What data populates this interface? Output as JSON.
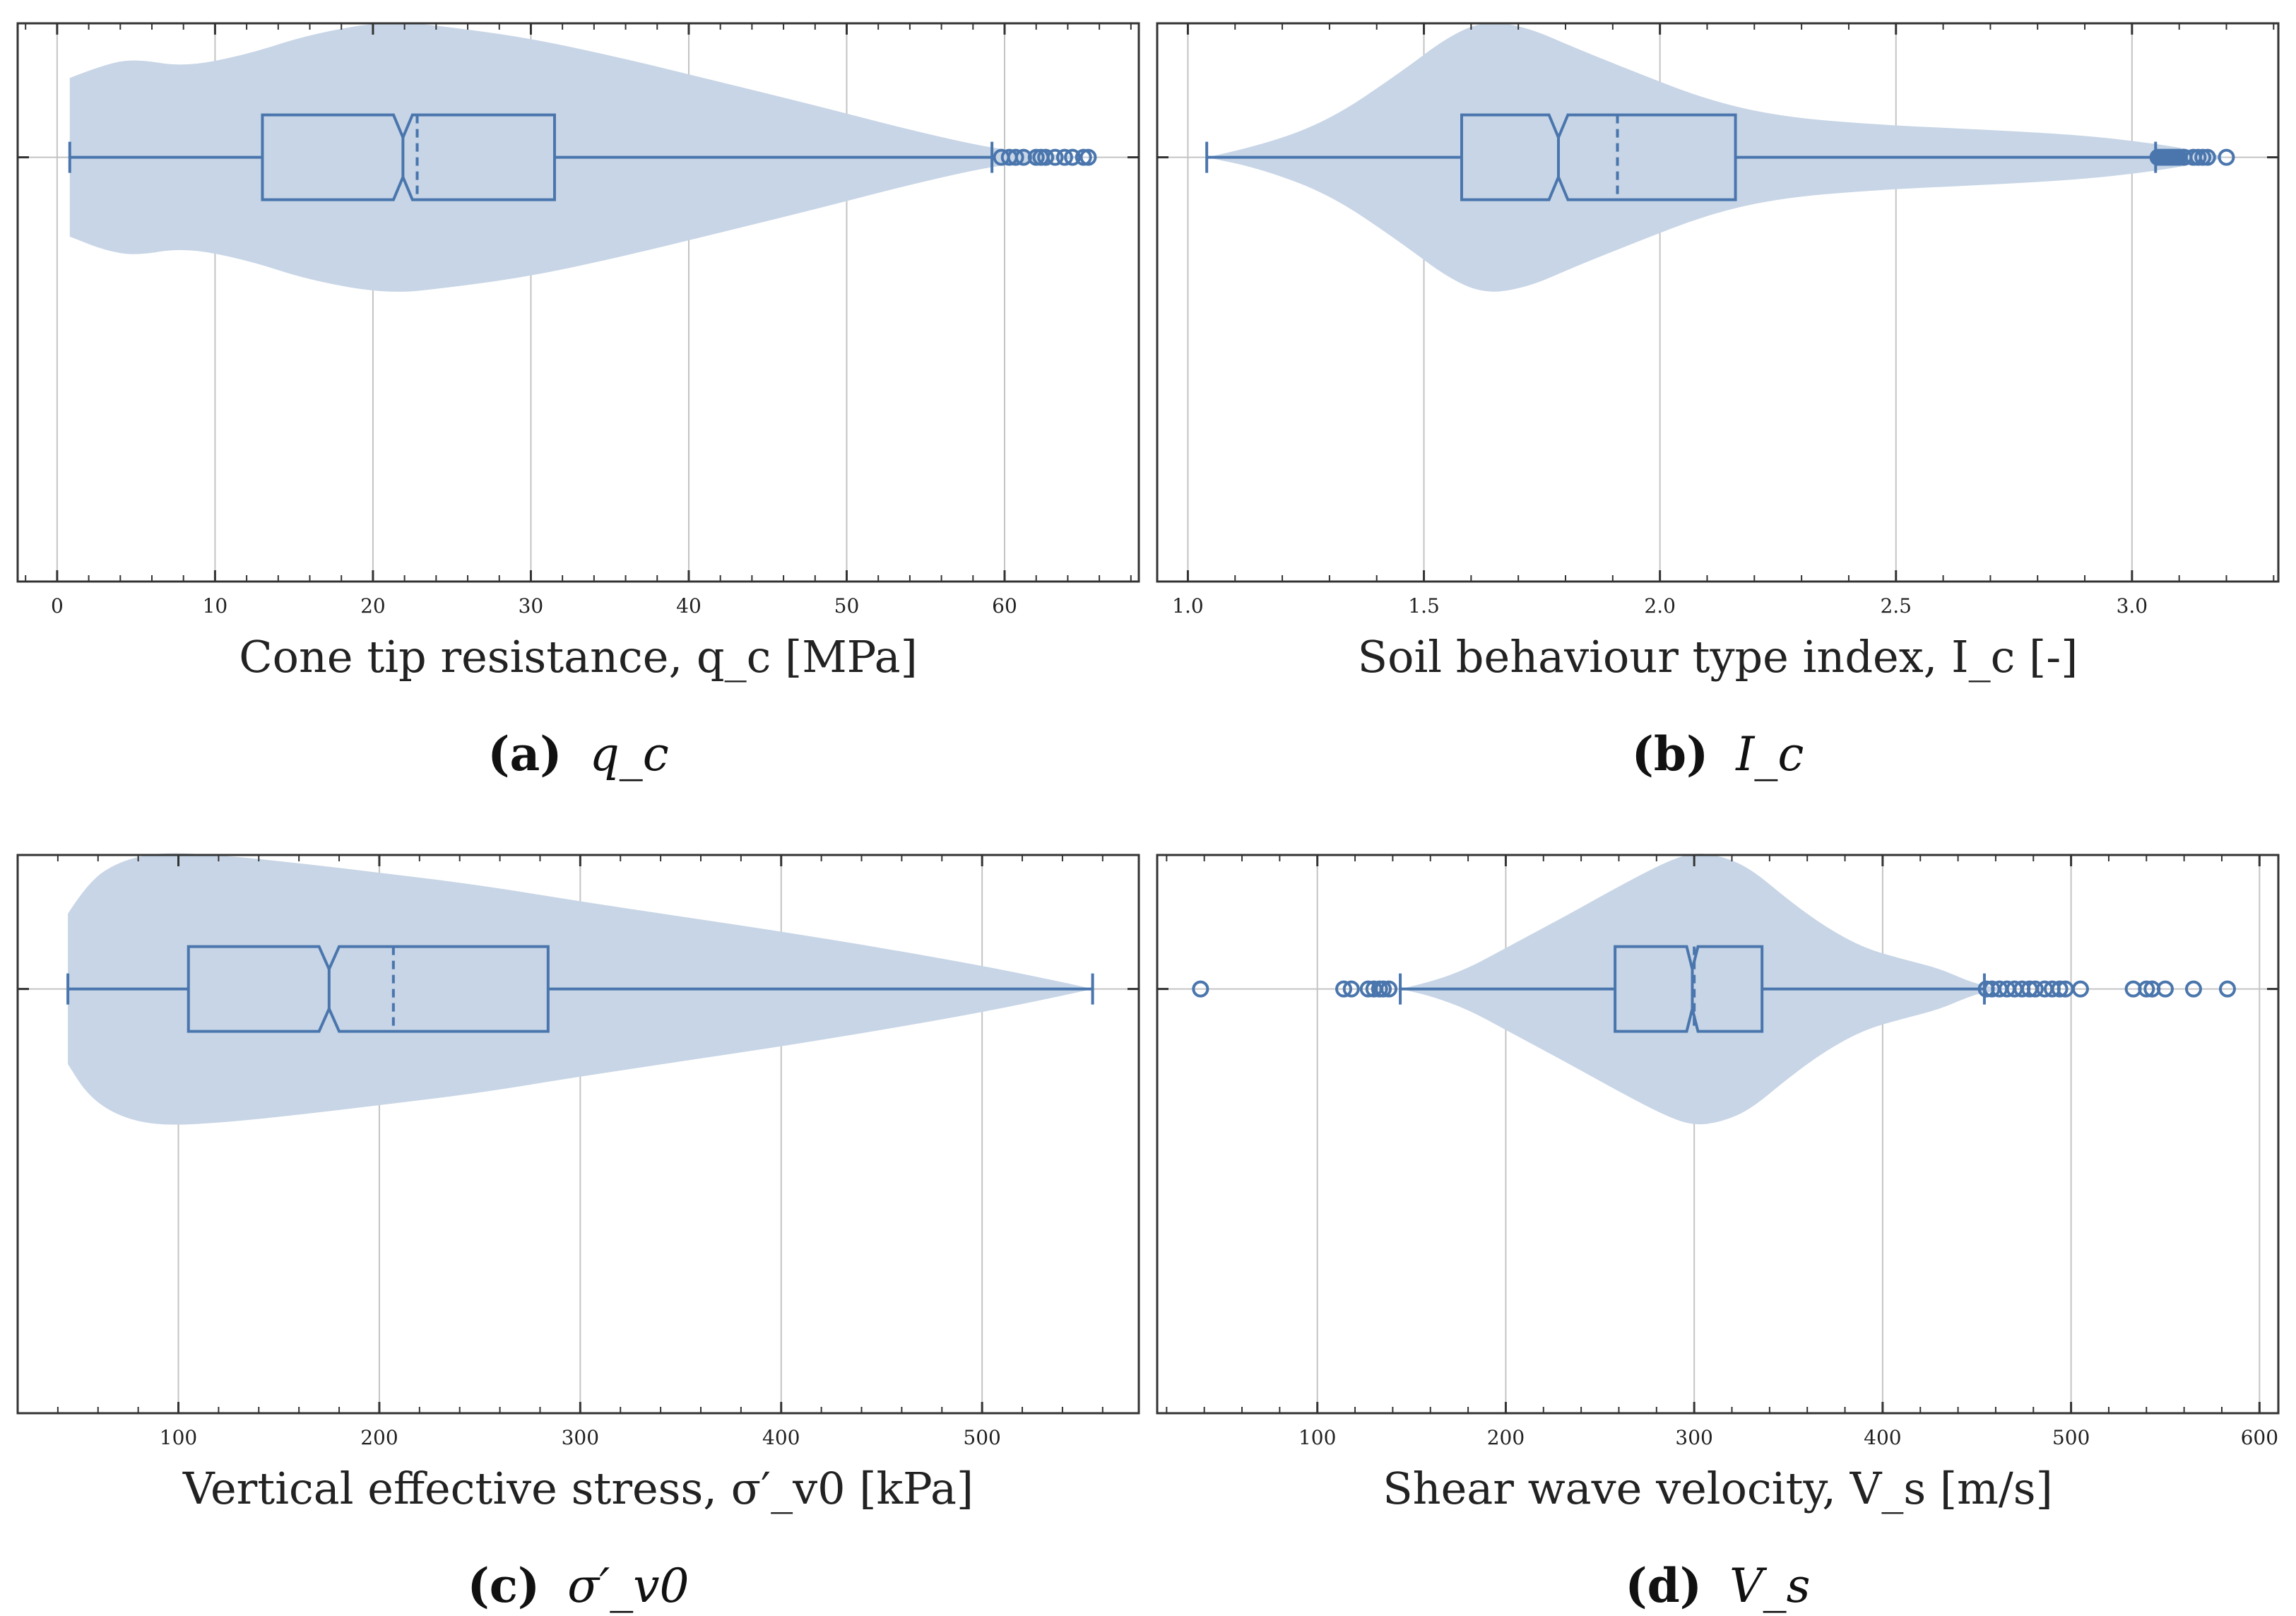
{
  "figure": {
    "colors": {
      "violin": "#c7d5e6",
      "box": "#4a76ad",
      "grid": "#c4c4c4",
      "frame": "#333333"
    }
  },
  "chart_data": [
    {
      "id": "a",
      "type": "violin+box",
      "xlabel": "Cone tip resistance, q_c [MPa]",
      "caption_letter": "(a)",
      "caption_symbol": "q_c",
      "xlim": [
        -2.5,
        68.5
      ],
      "xticks": [
        0,
        10,
        20,
        30,
        40,
        50,
        60
      ],
      "tick_labels": [
        "0",
        "10",
        "20",
        "30",
        "40",
        "50",
        "60"
      ],
      "minor_step": 2,
      "grid": true,
      "violin_profile": [
        [
          0.8,
          0.58
        ],
        [
          3,
          0.68
        ],
        [
          5,
          0.72
        ],
        [
          8,
          0.66
        ],
        [
          12,
          0.75
        ],
        [
          16,
          0.9
        ],
        [
          21,
          1.0
        ],
        [
          25,
          0.95
        ],
        [
          30,
          0.87
        ],
        [
          36,
          0.72
        ],
        [
          42,
          0.55
        ],
        [
          48,
          0.38
        ],
        [
          54,
          0.2
        ],
        [
          59,
          0.07
        ],
        [
          62,
          0.03
        ],
        [
          65.5,
          0.0
        ]
      ],
      "whisker_low": 0.8,
      "q1": 13,
      "median": 21.9,
      "mean": 22.8,
      "q3": 31.5,
      "whisker_high": 59.2,
      "notch": [
        21.3,
        22.5
      ],
      "outliers": [
        59.8,
        60.3,
        60.7,
        61.2,
        62.0,
        62.3,
        62.6,
        63.2,
        63.8,
        64.3,
        65.0,
        65.3
      ]
    },
    {
      "id": "b",
      "type": "violin+box",
      "xlabel": "Soil behaviour type index, I_c [-]",
      "caption_letter": "(b)",
      "caption_symbol": "I_c",
      "xlim": [
        0.935,
        3.31
      ],
      "xticks": [
        1.0,
        1.5,
        2.0,
        2.5,
        3.0
      ],
      "tick_labels": [
        "1.0",
        "1.5",
        "2.0",
        "2.5",
        "3.0"
      ],
      "minor_step": 0.1,
      "grid": true,
      "violin_profile": [
        [
          1.04,
          0.0
        ],
        [
          1.15,
          0.08
        ],
        [
          1.3,
          0.27
        ],
        [
          1.45,
          0.62
        ],
        [
          1.55,
          0.88
        ],
        [
          1.63,
          1.0
        ],
        [
          1.72,
          0.95
        ],
        [
          1.82,
          0.8
        ],
        [
          1.95,
          0.62
        ],
        [
          2.1,
          0.42
        ],
        [
          2.25,
          0.3
        ],
        [
          2.45,
          0.24
        ],
        [
          2.7,
          0.2
        ],
        [
          2.9,
          0.16
        ],
        [
          3.05,
          0.1
        ],
        [
          3.15,
          0.04
        ],
        [
          3.2,
          0.0
        ]
      ],
      "whisker_low": 1.04,
      "q1": 1.58,
      "median": 1.785,
      "mean": 1.91,
      "q3": 2.16,
      "whisker_high": 3.05,
      "notch": [
        1.765,
        1.805
      ],
      "outliers": [
        3.055,
        3.06,
        3.065,
        3.07,
        3.075,
        3.08,
        3.085,
        3.09,
        3.095,
        3.1,
        3.11,
        3.13,
        3.14,
        3.15,
        3.16,
        3.2
      ]
    },
    {
      "id": "c",
      "type": "violin+box",
      "xlabel": "Vertical effective stress, σ′_v0 [kPa]",
      "caption_letter": "(c)",
      "caption_symbol": "σ′_v0",
      "xlim": [
        20,
        578
      ],
      "xticks": [
        100,
        200,
        300,
        400,
        500
      ],
      "tick_labels": [
        "100",
        "200",
        "300",
        "400",
        "500"
      ],
      "minor_step": 20,
      "grid": true,
      "violin_profile": [
        [
          45,
          0.55
        ],
        [
          55,
          0.78
        ],
        [
          70,
          0.93
        ],
        [
          90,
          1.0
        ],
        [
          120,
          0.98
        ],
        [
          160,
          0.92
        ],
        [
          200,
          0.85
        ],
        [
          250,
          0.76
        ],
        [
          300,
          0.64
        ],
        [
          350,
          0.53
        ],
        [
          400,
          0.42
        ],
        [
          450,
          0.3
        ],
        [
          500,
          0.17
        ],
        [
          540,
          0.05
        ],
        [
          555,
          0.0
        ]
      ],
      "whisker_low": 45,
      "q1": 105,
      "median": 175,
      "mean": 207,
      "q3": 284,
      "whisker_high": 555,
      "notch": [
        170,
        180
      ],
      "outliers": []
    },
    {
      "id": "d",
      "type": "violin+box",
      "xlabel": "Shear wave velocity, V_s [m/s]",
      "caption_letter": "(d)",
      "caption_symbol": "V_s",
      "xlim": [
        15,
        610
      ],
      "xticks": [
        100,
        200,
        300,
        400,
        500,
        600
      ],
      "tick_labels": [
        "100",
        "200",
        "300",
        "400",
        "500",
        "600"
      ],
      "minor_step": 20,
      "grid": true,
      "violin_profile": [
        [
          144,
          0.0
        ],
        [
          160,
          0.05
        ],
        [
          180,
          0.15
        ],
        [
          200,
          0.3
        ],
        [
          230,
          0.52
        ],
        [
          260,
          0.75
        ],
        [
          285,
          0.93
        ],
        [
          300,
          1.0
        ],
        [
          315,
          0.97
        ],
        [
          330,
          0.88
        ],
        [
          350,
          0.65
        ],
        [
          370,
          0.45
        ],
        [
          390,
          0.3
        ],
        [
          410,
          0.22
        ],
        [
          430,
          0.15
        ],
        [
          445,
          0.06
        ],
        [
          455,
          0.02
        ],
        [
          470,
          0.0
        ]
      ],
      "whisker_low": 144,
      "q1": 258,
      "median": 299,
      "mean": 300,
      "q3": 336,
      "whisker_high": 454,
      "notch": [
        296,
        302
      ],
      "outliers": [
        38,
        114,
        118,
        127,
        130,
        133,
        135,
        138,
        455,
        458,
        462,
        466,
        470,
        474,
        478,
        481,
        486,
        490,
        494,
        497,
        505,
        533,
        540,
        543,
        550,
        565,
        583
      ]
    }
  ]
}
